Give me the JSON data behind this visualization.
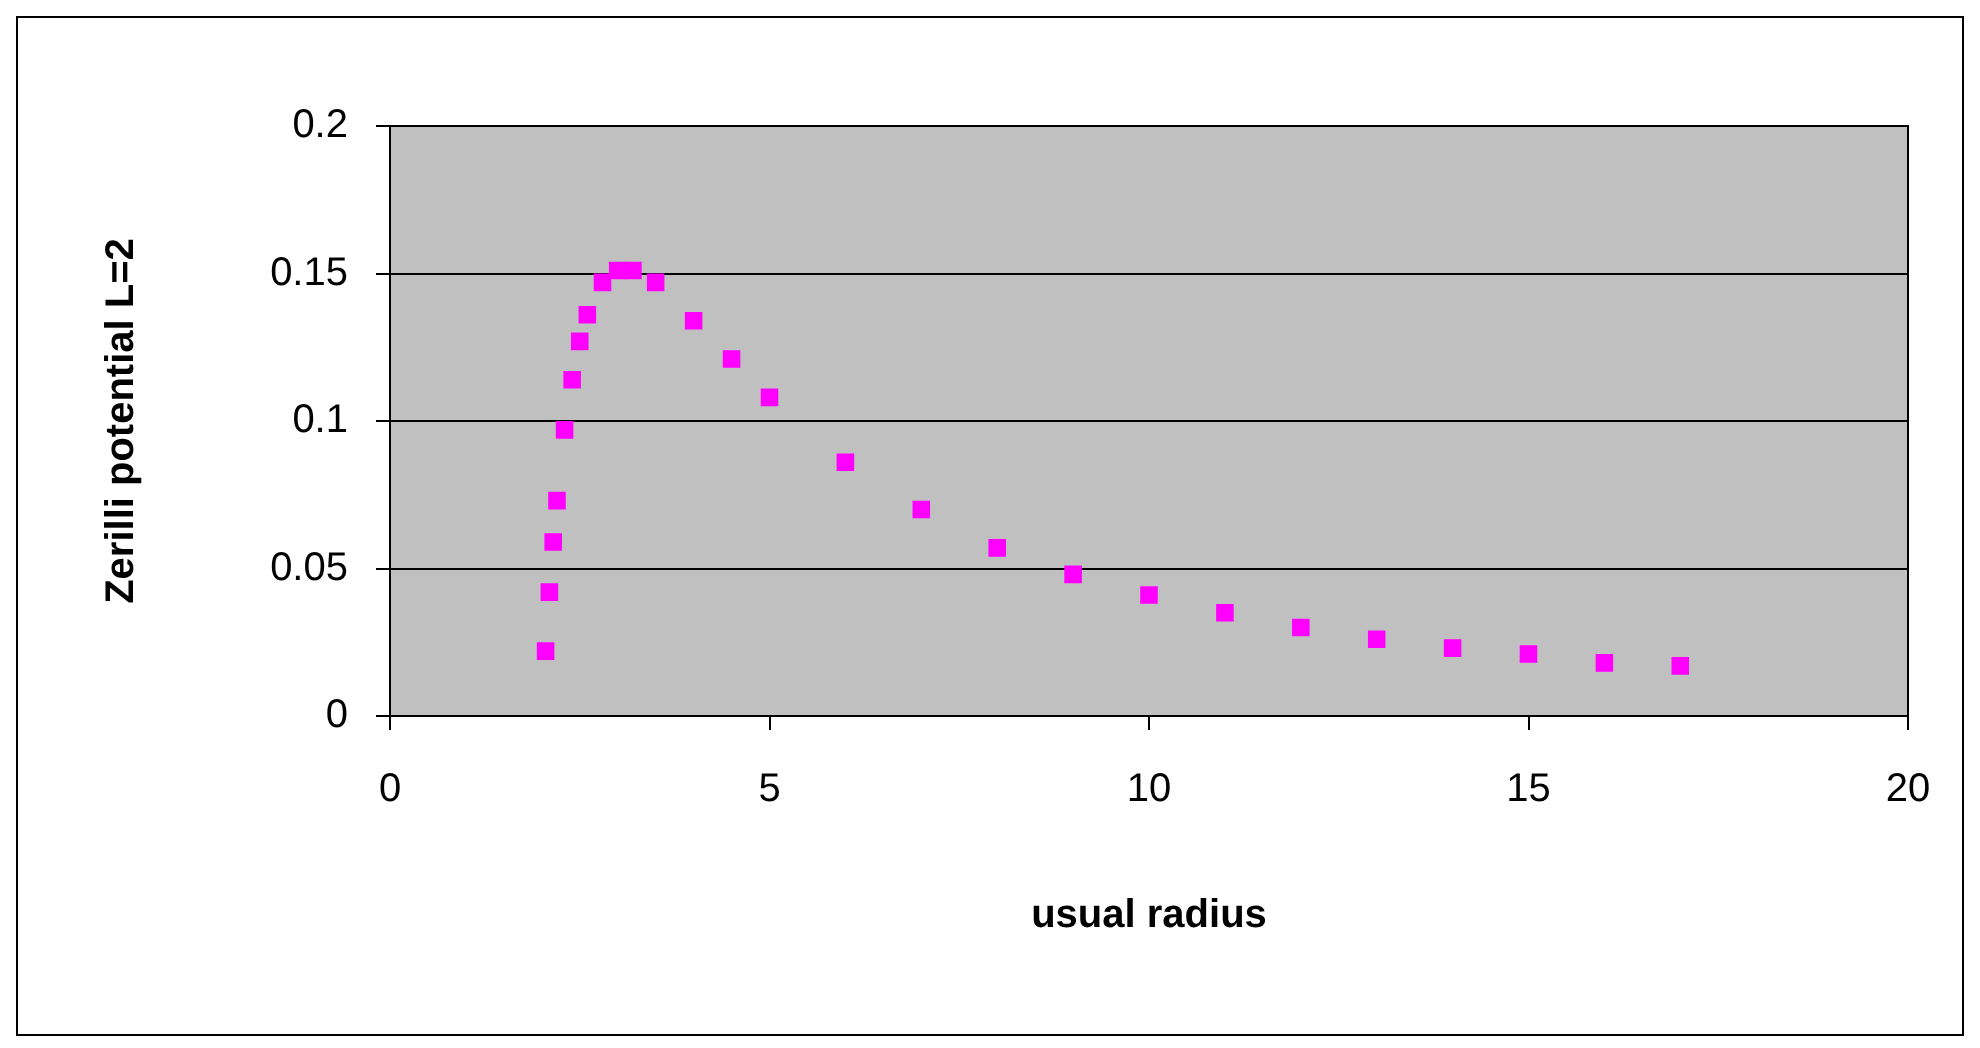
{
  "chart_data": {
    "type": "scatter",
    "xlabel": "usual radius",
    "ylabel": "Zerilli potential L=2",
    "x": [
      2.05,
      2.1,
      2.15,
      2.2,
      2.3,
      2.4,
      2.5,
      2.6,
      2.8,
      3.0,
      3.2,
      3.5,
      4,
      4.5,
      5,
      6,
      7,
      8,
      9,
      10,
      11,
      12,
      13,
      14,
      15,
      16,
      17
    ],
    "values": [
      0.022,
      0.042,
      0.059,
      0.073,
      0.097,
      0.114,
      0.127,
      0.136,
      0.147,
      0.151,
      0.151,
      0.147,
      0.134,
      0.121,
      0.108,
      0.086,
      0.07,
      0.057,
      0.048,
      0.041,
      0.035,
      0.03,
      0.026,
      0.023,
      0.021,
      0.018,
      0.017
    ],
    "color": "#ff00ff",
    "marker": "square",
    "xlim": [
      0,
      20
    ],
    "xticks": [
      0,
      5,
      10,
      15,
      20
    ],
    "ylim": [
      0,
      0.2
    ],
    "yticks": [
      0,
      0.05,
      0.1,
      0.15,
      0.2
    ],
    "grid": "y",
    "legend": false
  }
}
